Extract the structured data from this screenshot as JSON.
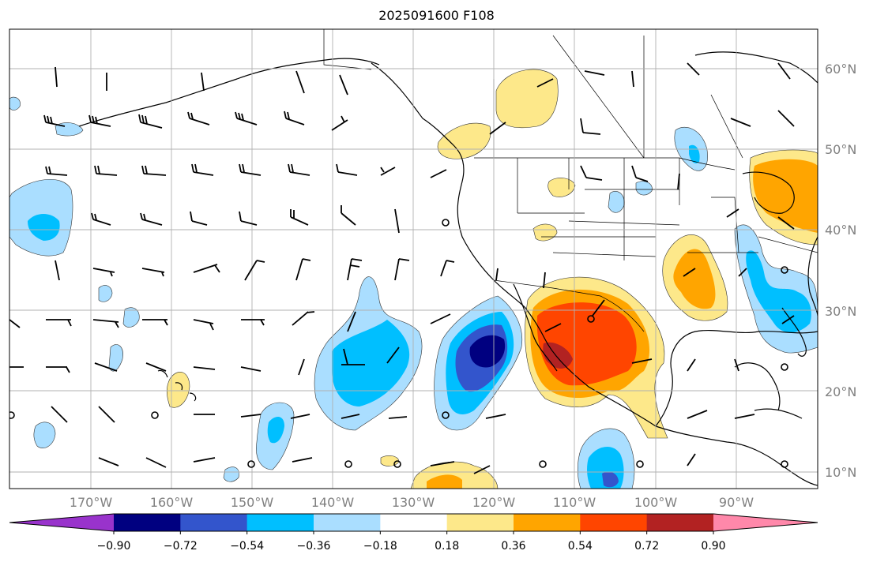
{
  "title": "2025091600 F108",
  "lat_labels": [
    "60°N",
    "50°N",
    "40°N",
    "30°N",
    "20°N",
    "10°N"
  ],
  "lon_labels": [
    "170°W",
    "160°W",
    "150°W",
    "140°W",
    "130°W",
    "120°W",
    "110°W",
    "100°W",
    "90°W"
  ],
  "colorbar": {
    "ticks": [
      "−0.90",
      "−0.72",
      "−0.54",
      "−0.36",
      "−0.18",
      "0.18",
      "0.36",
      "0.54",
      "0.72",
      "0.90"
    ],
    "colors": [
      "#9933cc",
      "#000080",
      "#3355cc",
      "#00bfff",
      "#aadeff",
      "#ffffff",
      "#fde88a",
      "#ffa500",
      "#ff4500",
      "#b22222",
      "#ff88aa"
    ]
  },
  "colors": {
    "pos1": "#fde88a",
    "pos2": "#ffa500",
    "pos3": "#ff4500",
    "pos4": "#b22222",
    "neg1": "#aadeff",
    "neg2": "#00bfff",
    "neg3": "#3355cc",
    "neg4": "#000080",
    "grid": "#b0b0b0",
    "coast": "#000000"
  }
}
